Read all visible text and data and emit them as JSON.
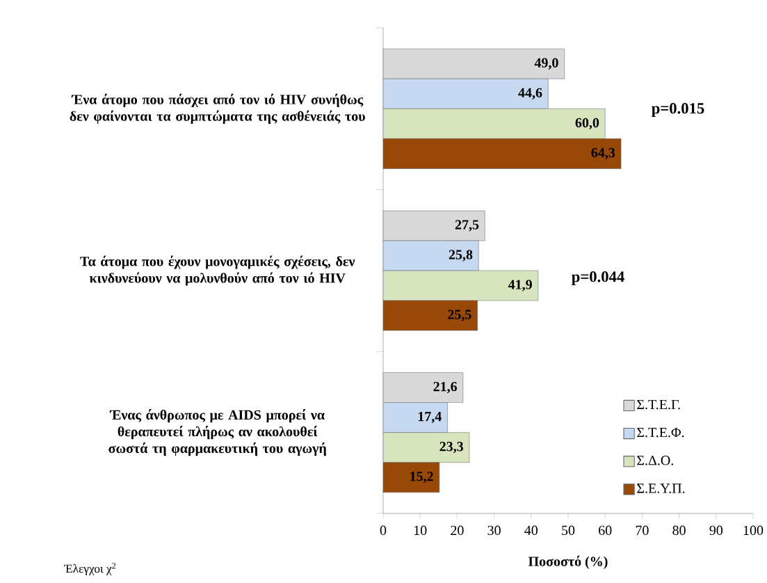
{
  "chart_data": {
    "type": "bar",
    "orientation": "horizontal",
    "categories": [
      "Ένα άτομο που πάσχει από τον ιό HIV συνήθως δεν φαίνονται τα συμπτώματα της ασθένειάς του",
      "Τα άτομα που έχουν μονογαμικές σχέσεις, δεν κινδυνεύουν να μολυνθούν από τον ιό HIV",
      "Ένας άνθρωπος με AIDS μπορεί να θεραπευτεί πλήρως αν ακολουθεί σωστά τη φαρμακευτική του αγωγή"
    ],
    "series": [
      {
        "name": "Σ.Τ.Ε.Γ.",
        "color": "#d9d9d9",
        "values": [
          49.0,
          27.5,
          21.6
        ],
        "value_labels": [
          "49,0",
          "27,5",
          "21,6"
        ]
      },
      {
        "name": "Σ.Τ.Ε.Φ.",
        "color": "#c6d9f1",
        "values": [
          44.6,
          25.8,
          17.4
        ],
        "value_labels": [
          "44,6",
          "25,8",
          "17,4"
        ]
      },
      {
        "name": "Σ.Δ.Ο.",
        "color": "#d7e4bd",
        "values": [
          60.0,
          41.9,
          23.3
        ],
        "value_labels": [
          "60,0",
          "41,9",
          "23,3"
        ]
      },
      {
        "name": "Σ.Ε.Υ.Π.",
        "color": "#984807",
        "values": [
          64.3,
          25.5,
          15.2
        ],
        "value_labels": [
          "64,3",
          "25,5",
          "15,2"
        ]
      }
    ],
    "xlabel": "Ποσοστό (%)",
    "xlim": [
      0,
      100
    ],
    "xticks": [
      0,
      10,
      20,
      30,
      40,
      50,
      60,
      70,
      80,
      90,
      100
    ],
    "legend": "bottom right",
    "annotations": [
      "p=0.015",
      "p=0.044",
      "Έλεγχοι χ$^{2}$"
    ]
  }
}
